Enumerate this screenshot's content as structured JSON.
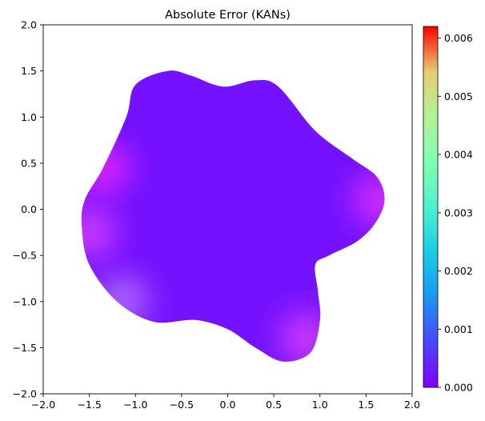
{
  "chart_data": {
    "type": "heatmap",
    "title": "Absolute Error (KANs)",
    "xlabel": "",
    "ylabel": "",
    "xlim": [
      -2.0,
      2.0
    ],
    "ylim": [
      -2.0,
      2.0
    ],
    "x_ticks": [
      "−2.0",
      "−1.5",
      "−1.0",
      "−0.5",
      "0.0",
      "0.5",
      "1.0",
      "1.5",
      "2.0"
    ],
    "y_ticks": [
      "−2.0",
      "−1.5",
      "−1.0",
      "−0.5",
      "0.0",
      "0.5",
      "1.0",
      "1.5",
      "2.0"
    ],
    "grid": false,
    "colormap": "rainbow",
    "colorbar": {
      "range": [
        0.0,
        0.0062
      ],
      "ticks": [
        "0.000",
        "0.001",
        "0.002",
        "0.003",
        "0.004",
        "0.005",
        "0.006"
      ]
    },
    "domain_shape": {
      "description_units": "data",
      "lobes": 5,
      "boundary": [
        [
          -1.1,
          1.0
        ],
        [
          -1.0,
          1.35
        ],
        [
          -0.65,
          1.5
        ],
        [
          -0.4,
          1.45
        ],
        [
          -0.05,
          1.33
        ],
        [
          0.3,
          1.4
        ],
        [
          0.55,
          1.33
        ],
        [
          0.95,
          0.85
        ],
        [
          1.35,
          0.55
        ],
        [
          1.62,
          0.35
        ],
        [
          1.7,
          0.1
        ],
        [
          1.6,
          -0.15
        ],
        [
          1.4,
          -0.35
        ],
        [
          1.1,
          -0.5
        ],
        [
          0.95,
          -0.6
        ],
        [
          0.98,
          -0.9
        ],
        [
          1.0,
          -1.2
        ],
        [
          0.9,
          -1.55
        ],
        [
          0.6,
          -1.65
        ],
        [
          0.3,
          -1.5
        ],
        [
          0.0,
          -1.3
        ],
        [
          -0.35,
          -1.2
        ],
        [
          -0.8,
          -1.22
        ],
        [
          -1.2,
          -1.0
        ],
        [
          -1.5,
          -0.6
        ],
        [
          -1.58,
          -0.2
        ],
        [
          -1.55,
          0.1
        ],
        [
          -1.35,
          0.45
        ]
      ]
    },
    "error_field": {
      "base_value": 0.0001,
      "hotspots": [
        {
          "x": -1.15,
          "y": -1.0,
          "value": 0.0009
        },
        {
          "x": -1.5,
          "y": -0.25,
          "value": 0.0005
        },
        {
          "x": 0.85,
          "y": -1.4,
          "value": 0.0005
        },
        {
          "x": 1.65,
          "y": 0.1,
          "value": 0.0004
        },
        {
          "x": -1.35,
          "y": 0.45,
          "value": 0.0003
        }
      ]
    }
  }
}
